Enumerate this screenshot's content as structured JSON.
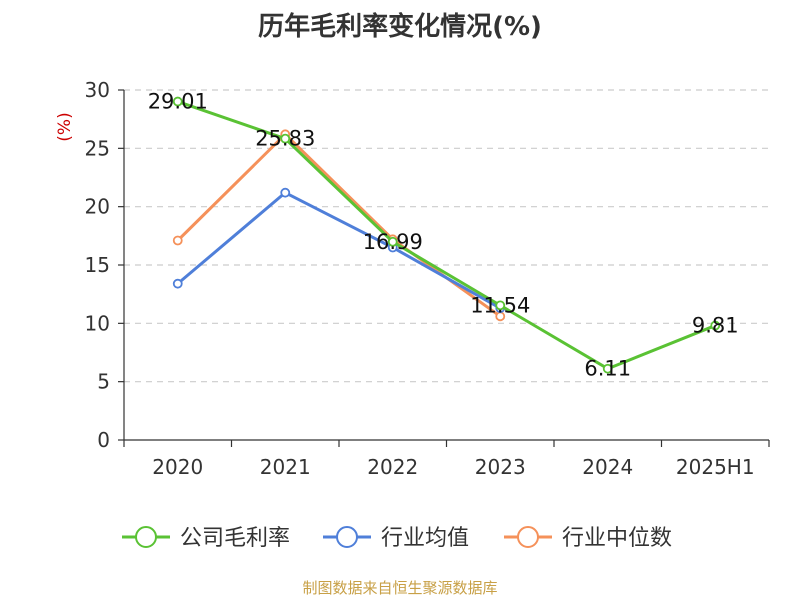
{
  "chart_data": {
    "type": "line",
    "title": "历年毛利率变化情况(%)",
    "ylabel": "(%)",
    "xlabel": "",
    "categories": [
      "2020",
      "2021",
      "2022",
      "2023",
      "2024",
      "2025H1"
    ],
    "ylim": [
      0,
      30
    ],
    "yticks": [
      0,
      5,
      10,
      15,
      20,
      25,
      30
    ],
    "grid": true,
    "legend_position": "bottom",
    "series": [
      {
        "name": "公司毛利率",
        "color": "#5ac234",
        "values": [
          29.01,
          25.83,
          16.99,
          11.54,
          6.11,
          9.81
        ],
        "labels": [
          "29.01",
          "25.83",
          "16.99",
          "11.54",
          "6.11",
          "9.81"
        ]
      },
      {
        "name": "行业均值",
        "color": "#4f7fd9",
        "values": [
          13.4,
          21.2,
          16.5,
          11.3,
          null,
          null
        ]
      },
      {
        "name": "行业中位数",
        "color": "#f5915a",
        "values": [
          17.1,
          26.2,
          17.2,
          10.6,
          null,
          null
        ]
      }
    ]
  },
  "source": "制图数据来自恒生聚源数据库"
}
